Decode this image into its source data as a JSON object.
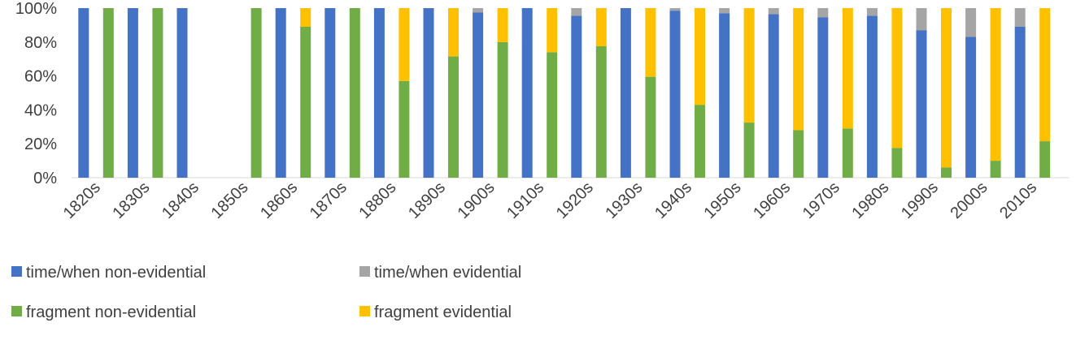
{
  "chart_data": {
    "type": "bar",
    "stacked": "percent",
    "ylim": [
      0,
      100
    ],
    "yticks": [
      "0%",
      "20%",
      "40%",
      "60%",
      "80%",
      "100%"
    ],
    "categories": [
      "1820s",
      "1830s",
      "1840s",
      "1850s",
      "1860s",
      "1870s",
      "1880s",
      "1890s",
      "1900s",
      "1910s",
      "1920s",
      "1930s",
      "1940s",
      "1950s",
      "1960s",
      "1970s",
      "1980s",
      "1990s",
      "2000s",
      "2010s"
    ],
    "groups": [
      {
        "name": "time/when",
        "series": [
          "time/when non-evidential",
          "time/when evidential"
        ]
      },
      {
        "name": "fragment",
        "series": [
          "fragment non-evidential",
          "fragment evidential"
        ]
      }
    ],
    "series": [
      {
        "name": "time/when non-evidential",
        "color": "#4472c4",
        "values": [
          100,
          100,
          100,
          null,
          100,
          100,
          100,
          100,
          97.5,
          100,
          95.5,
          100,
          98.5,
          97,
          96.5,
          94.5,
          95.5,
          87,
          83,
          89
        ]
      },
      {
        "name": "time/when evidential",
        "color": "#a5a5a5",
        "values": [
          0,
          0,
          0,
          null,
          0,
          0,
          0,
          0,
          2.5,
          0,
          4.5,
          0,
          1.5,
          3,
          3.5,
          5.5,
          4.5,
          13,
          17,
          11
        ]
      },
      {
        "name": "fragment non-evidential",
        "color": "#70ad47",
        "values": [
          100,
          100,
          null,
          100,
          89,
          100,
          57,
          71.5,
          80,
          74,
          77.5,
          59.5,
          43,
          32.5,
          28,
          29,
          17.5,
          6,
          10,
          21.5
        ]
      },
      {
        "name": "fragment evidential",
        "color": "#ffc000",
        "values": [
          0,
          0,
          null,
          0,
          11,
          0,
          43,
          28.5,
          20,
          26,
          22.5,
          40.5,
          57,
          67.5,
          72,
          71,
          82.5,
          94,
          90,
          78.5
        ]
      }
    ],
    "legend": {
      "placement": "bottom",
      "entries": [
        {
          "label": "time/when non-evidential",
          "color": "#4472c4"
        },
        {
          "label": "time/when evidential",
          "color": "#a5a5a5"
        },
        {
          "label": "fragment non-evidential",
          "color": "#70ad47"
        },
        {
          "label": "fragment evidential",
          "color": "#ffc000"
        }
      ]
    },
    "grid": false
  }
}
